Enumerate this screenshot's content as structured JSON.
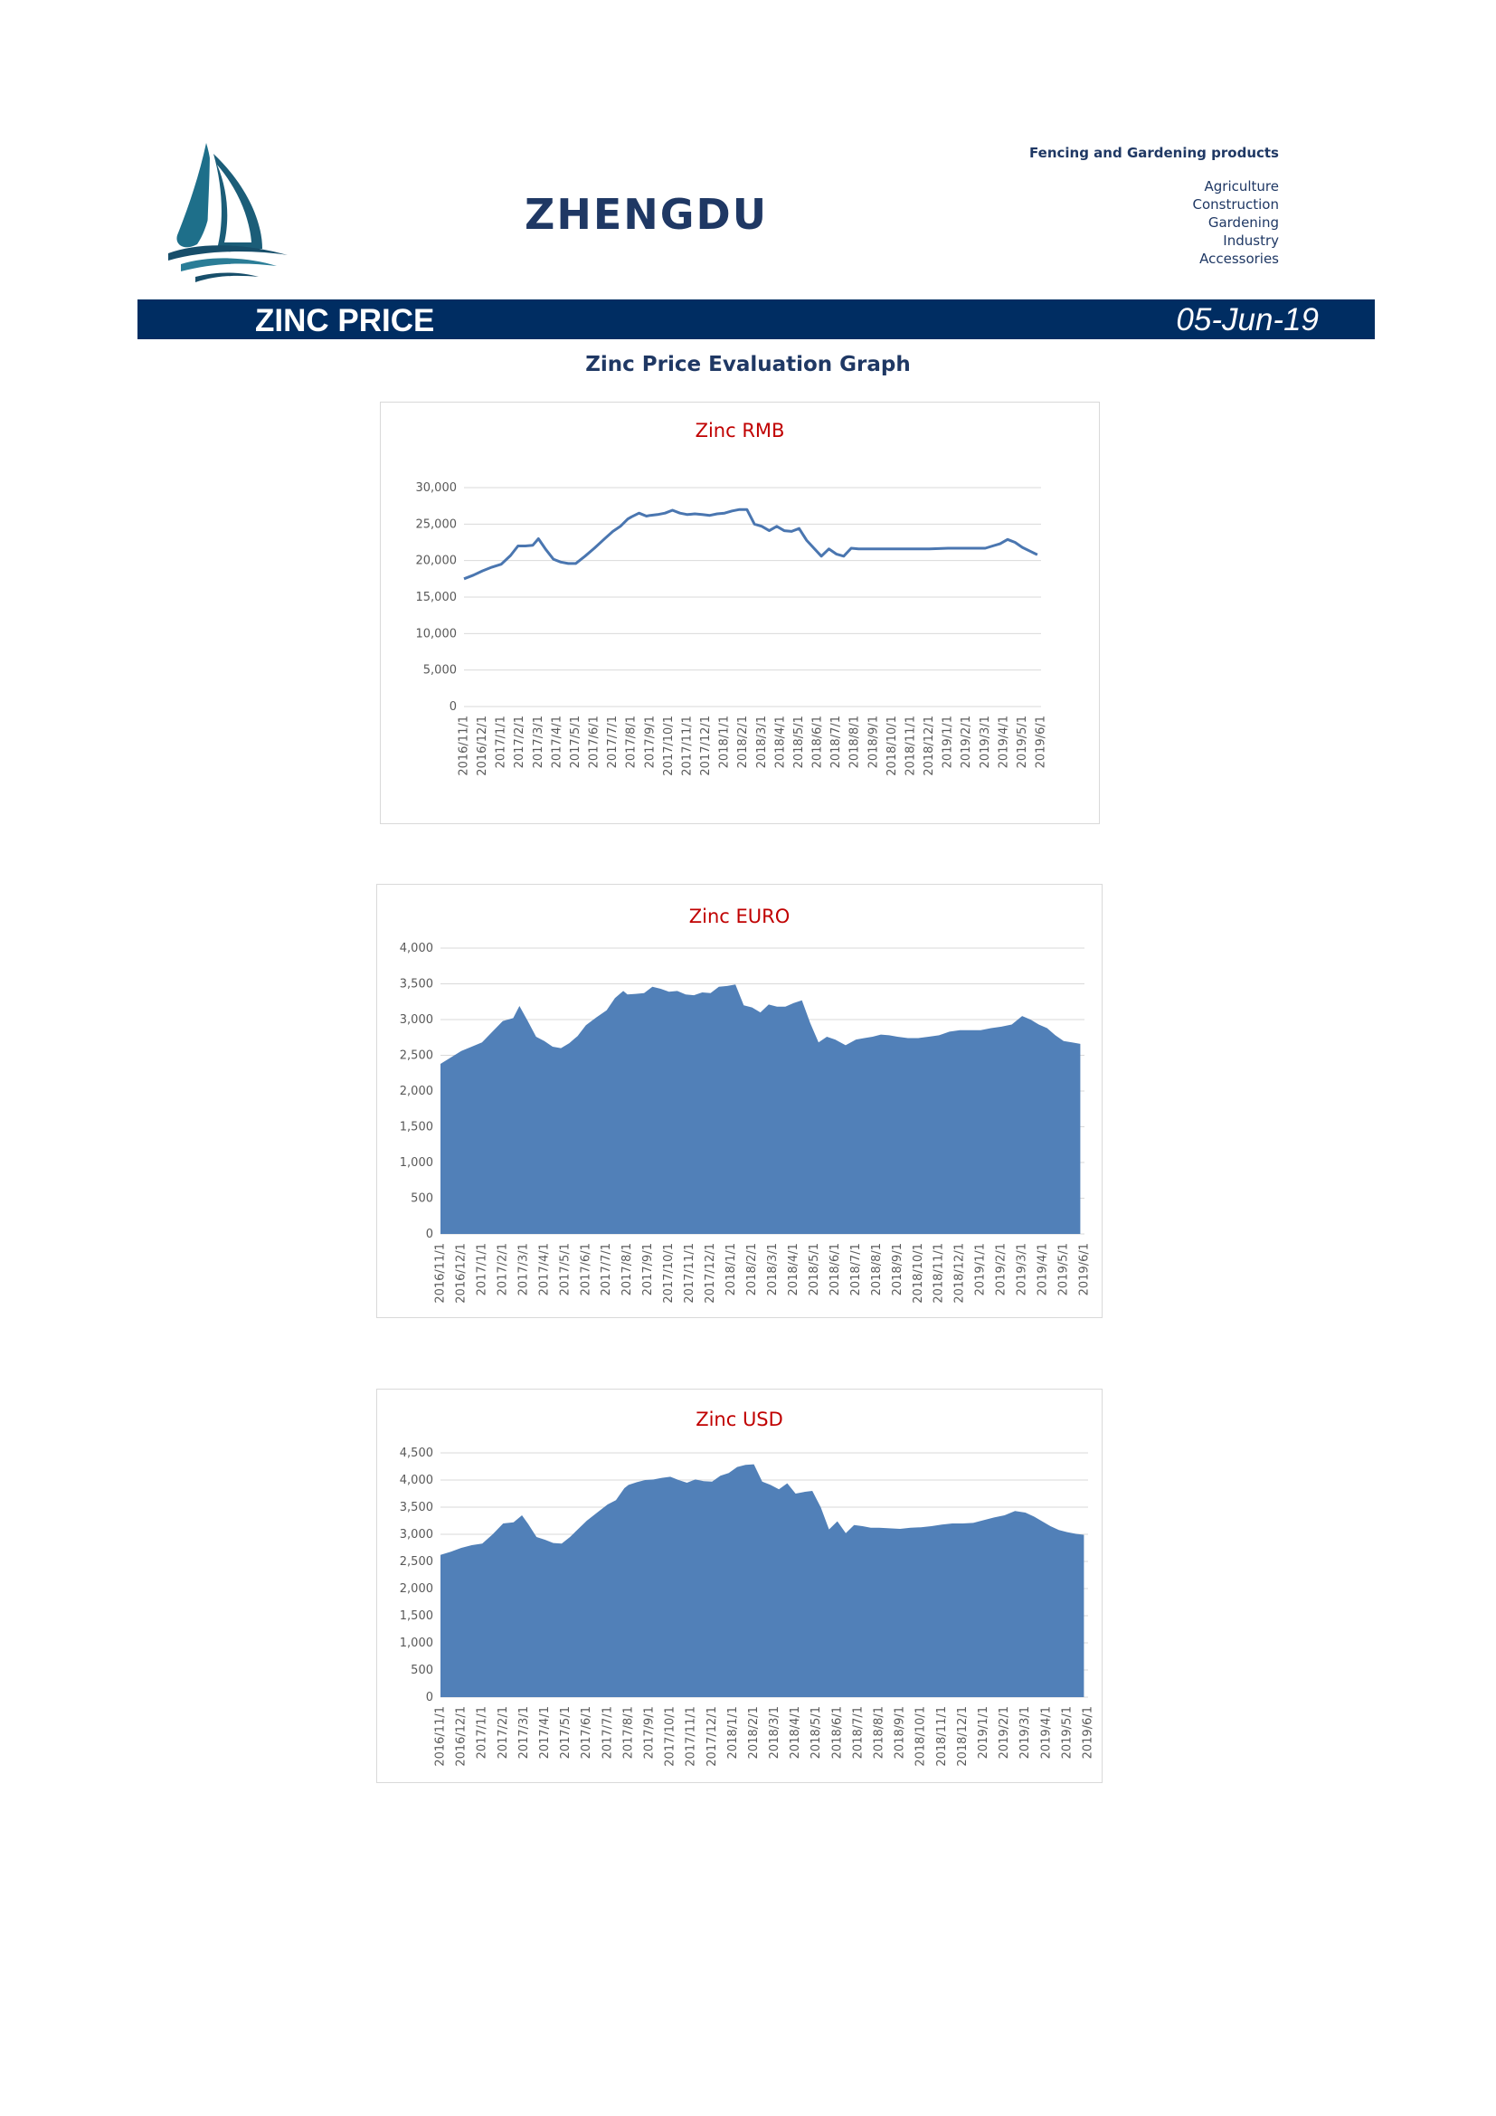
{
  "header": {
    "brand": "ZHENGDU",
    "tagline": "Fencing and Gardening products",
    "categories": [
      "Agriculture",
      "Construction",
      "Gardening",
      "Industry",
      "Accessories"
    ],
    "logo_icon": "sailboat-icon"
  },
  "banner": {
    "title": "ZINC PRICE",
    "date": "05-Jun-19",
    "color": "#002d62"
  },
  "page_title": "Zinc Price Evaluation Graph",
  "chart_data": [
    {
      "type": "line",
      "title": "Zinc RMB",
      "color": "#4a76b0",
      "ylim": [
        0,
        30000
      ],
      "yticks": [
        0,
        5000,
        10000,
        15000,
        20000,
        25000,
        30000
      ],
      "ytick_labels": [
        "0",
        "5,000",
        "10,000",
        "15,000",
        "20,000",
        "25,000",
        "30,000"
      ],
      "grid": true,
      "x_labels": [
        "2016/11/1",
        "2016/12/1",
        "2017/1/1",
        "2017/2/1",
        "2017/3/1",
        "2017/4/1",
        "2017/5/1",
        "2017/6/1",
        "2017/7/1",
        "2017/8/1",
        "2017/9/1",
        "2017/10/1",
        "2017/11/1",
        "2017/12/1",
        "2018/1/1",
        "2018/2/1",
        "2018/3/1",
        "2018/4/1",
        "2018/5/1",
        "2018/6/1",
        "2018/7/1",
        "2018/8/1",
        "2018/9/1",
        "2018/10/1",
        "2018/11/1",
        "2018/12/1",
        "2019/1/1",
        "2019/2/1",
        "2019/3/1",
        "2019/4/1",
        "2019/5/1",
        "2019/6/1"
      ],
      "x_range": [
        0,
        31
      ],
      "x": [
        0,
        0.5,
        1.0,
        1.5,
        2.0,
        2.5,
        2.9,
        3.3,
        3.7,
        4.0,
        4.4,
        4.8,
        5.2,
        5.6,
        6.0,
        6.5,
        7.0,
        7.6,
        8.0,
        8.4,
        8.8,
        9.0,
        9.4,
        9.8,
        10.0,
        10.4,
        10.8,
        11.2,
        11.6,
        12.0,
        12.4,
        12.8,
        13.2,
        13.6,
        14.0,
        14.4,
        14.8,
        15.2,
        15.6,
        16.0,
        16.4,
        16.8,
        17.2,
        17.6,
        18.0,
        18.4,
        18.8,
        19.2,
        19.6,
        20.0,
        20.4,
        20.8,
        21.2,
        21.6,
        22.0,
        22.5,
        23.0,
        24.0,
        25.0,
        26.0,
        27.0,
        27.5,
        28.0,
        28.4,
        28.8,
        29.2,
        29.6,
        30.0,
        30.4,
        30.8
      ],
      "values": [
        17500,
        18000,
        18600,
        19100,
        19500,
        20700,
        22000,
        22000,
        22100,
        23000,
        21500,
        20200,
        19800,
        19600,
        19600,
        20600,
        21700,
        23100,
        24000,
        24700,
        25700,
        26000,
        26500,
        26100,
        26200,
        26300,
        26500,
        26900,
        26500,
        26300,
        26400,
        26300,
        26200,
        26400,
        26500,
        26800,
        27000,
        27000,
        25000,
        24700,
        24100,
        24700,
        24100,
        24000,
        24400,
        22800,
        21700,
        20600,
        21600,
        20900,
        20600,
        21700,
        21600,
        21600,
        21600,
        21600,
        21600,
        21600,
        21600,
        21700,
        21700,
        21700,
        21700,
        22000,
        22300,
        22900,
        22500,
        21800,
        21300,
        20800
      ]
    },
    {
      "type": "area",
      "title": "Zinc EURO",
      "color": "#5180b8",
      "ylim": [
        0,
        4000
      ],
      "yticks": [
        0,
        500,
        1000,
        1500,
        2000,
        2500,
        3000,
        3500,
        4000
      ],
      "ytick_labels": [
        "0",
        "500",
        "1,000",
        "1,500",
        "2,000",
        "2,500",
        "3,000",
        "3,500",
        "4,000"
      ],
      "grid": true,
      "x_labels": [
        "2016/11/1",
        "2016/12/1",
        "2017/1/1",
        "2017/2/1",
        "2017/3/1",
        "2017/4/1",
        "2017/5/1",
        "2017/6/1",
        "2017/7/1",
        "2017/8/1",
        "2017/9/1",
        "2017/10/1",
        "2017/11/1",
        "2017/12/1",
        "2018/1/1",
        "2018/2/1",
        "2018/3/1",
        "2018/4/1",
        "2018/5/1",
        "2018/6/1",
        "2018/7/1",
        "2018/8/1",
        "2018/9/1",
        "2018/10/1",
        "2018/11/1",
        "2018/12/1",
        "2019/1/1",
        "2019/2/1",
        "2019/3/1",
        "2019/4/1",
        "2019/5/1",
        "2019/6/1"
      ],
      "x_range": [
        0,
        31
      ],
      "x": [
        0,
        0.5,
        1.0,
        1.5,
        2.0,
        2.5,
        3.0,
        3.5,
        3.8,
        4.2,
        4.6,
        5.0,
        5.4,
        5.8,
        6.2,
        6.6,
        7.0,
        7.5,
        8.0,
        8.4,
        8.8,
        9.0,
        9.4,
        9.8,
        10.2,
        10.6,
        11.0,
        11.4,
        11.8,
        12.2,
        12.6,
        13.0,
        13.4,
        13.8,
        14.2,
        14.6,
        15.0,
        15.4,
        15.8,
        16.2,
        16.6,
        17.0,
        17.4,
        17.8,
        18.2,
        18.6,
        19.0,
        19.5,
        20.0,
        20.4,
        20.8,
        21.2,
        21.6,
        22.0,
        22.5,
        23.0,
        23.5,
        24.0,
        24.5,
        25.0,
        25.5,
        26.0,
        26.5,
        27.0,
        27.5,
        28.0,
        28.4,
        28.8,
        29.2,
        29.6,
        30.0,
        30.4,
        30.8
      ],
      "values": [
        2380,
        2470,
        2560,
        2620,
        2680,
        2830,
        2980,
        3020,
        3190,
        2980,
        2760,
        2700,
        2620,
        2600,
        2670,
        2770,
        2920,
        3030,
        3130,
        3300,
        3400,
        3350,
        3360,
        3370,
        3460,
        3430,
        3390,
        3400,
        3350,
        3340,
        3380,
        3370,
        3460,
        3470,
        3490,
        3200,
        3170,
        3100,
        3210,
        3180,
        3180,
        3230,
        3270,
        2950,
        2680,
        2760,
        2720,
        2640,
        2720,
        2740,
        2760,
        2790,
        2780,
        2760,
        2740,
        2740,
        2760,
        2780,
        2830,
        2850,
        2850,
        2850,
        2880,
        2900,
        2930,
        3050,
        3000,
        2930,
        2880,
        2780,
        2700,
        2680,
        2660
      ]
    },
    {
      "type": "area",
      "title": "Zinc USD",
      "color": "#5180b8",
      "ylim": [
        0,
        4500
      ],
      "yticks": [
        0,
        500,
        1000,
        1500,
        2000,
        2500,
        3000,
        3500,
        4000,
        4500
      ],
      "ytick_labels": [
        "0",
        "500",
        "1,000",
        "1,500",
        "2,000",
        "2,500",
        "3,000",
        "3,500",
        "4,000",
        "4,500"
      ],
      "grid": true,
      "x_labels": [
        "2016/11/1",
        "2016/12/1",
        "2017/1/1",
        "2017/2/1",
        "2017/3/1",
        "2017/4/1",
        "2017/5/1",
        "2017/6/1",
        "2017/7/1",
        "2017/8/1",
        "2017/9/1",
        "2017/10/1",
        "2017/11/1",
        "2017/12/1",
        "2018/1/1",
        "2018/2/1",
        "2018/3/1",
        "2018/4/1",
        "2018/5/1",
        "2018/6/1",
        "2018/7/1",
        "2018/8/1",
        "2018/9/1",
        "2018/10/1",
        "2018/11/1",
        "2018/12/1",
        "2019/1/1",
        "2019/2/1",
        "2019/3/1",
        "2019/4/1",
        "2019/5/1",
        "2019/6/1"
      ],
      "x_range": [
        0,
        31
      ],
      "x": [
        0,
        0.5,
        1.0,
        1.5,
        2.0,
        2.5,
        3.0,
        3.5,
        3.9,
        4.2,
        4.6,
        5.0,
        5.4,
        5.8,
        6.2,
        6.6,
        7.0,
        7.5,
        8.0,
        8.4,
        8.8,
        9.0,
        9.4,
        9.8,
        10.2,
        10.6,
        11.0,
        11.4,
        11.8,
        12.2,
        12.6,
        13.0,
        13.4,
        13.8,
        14.2,
        14.6,
        15.0,
        15.4,
        15.8,
        16.2,
        16.6,
        17.0,
        17.4,
        17.8,
        18.2,
        18.6,
        19.0,
        19.4,
        19.8,
        20.2,
        20.6,
        21.0,
        21.5,
        22.0,
        22.5,
        23.0,
        23.5,
        24.0,
        24.5,
        25.0,
        25.5,
        26.0,
        26.5,
        27.0,
        27.5,
        28.0,
        28.4,
        28.8,
        29.2,
        29.6,
        30.0,
        30.4,
        30.8
      ],
      "values": [
        2620,
        2680,
        2750,
        2800,
        2830,
        3000,
        3200,
        3220,
        3350,
        3190,
        2950,
        2900,
        2840,
        2830,
        2950,
        3100,
        3250,
        3400,
        3550,
        3630,
        3850,
        3910,
        3960,
        4000,
        4010,
        4040,
        4060,
        4000,
        3950,
        4010,
        3980,
        3970,
        4080,
        4130,
        4240,
        4280,
        4290,
        3970,
        3910,
        3830,
        3940,
        3750,
        3780,
        3800,
        3500,
        3090,
        3240,
        3020,
        3170,
        3150,
        3120,
        3120,
        3110,
        3100,
        3120,
        3130,
        3150,
        3180,
        3200,
        3200,
        3210,
        3260,
        3310,
        3350,
        3430,
        3400,
        3330,
        3240,
        3150,
        3080,
        3040,
        3010,
        2990
      ]
    }
  ]
}
